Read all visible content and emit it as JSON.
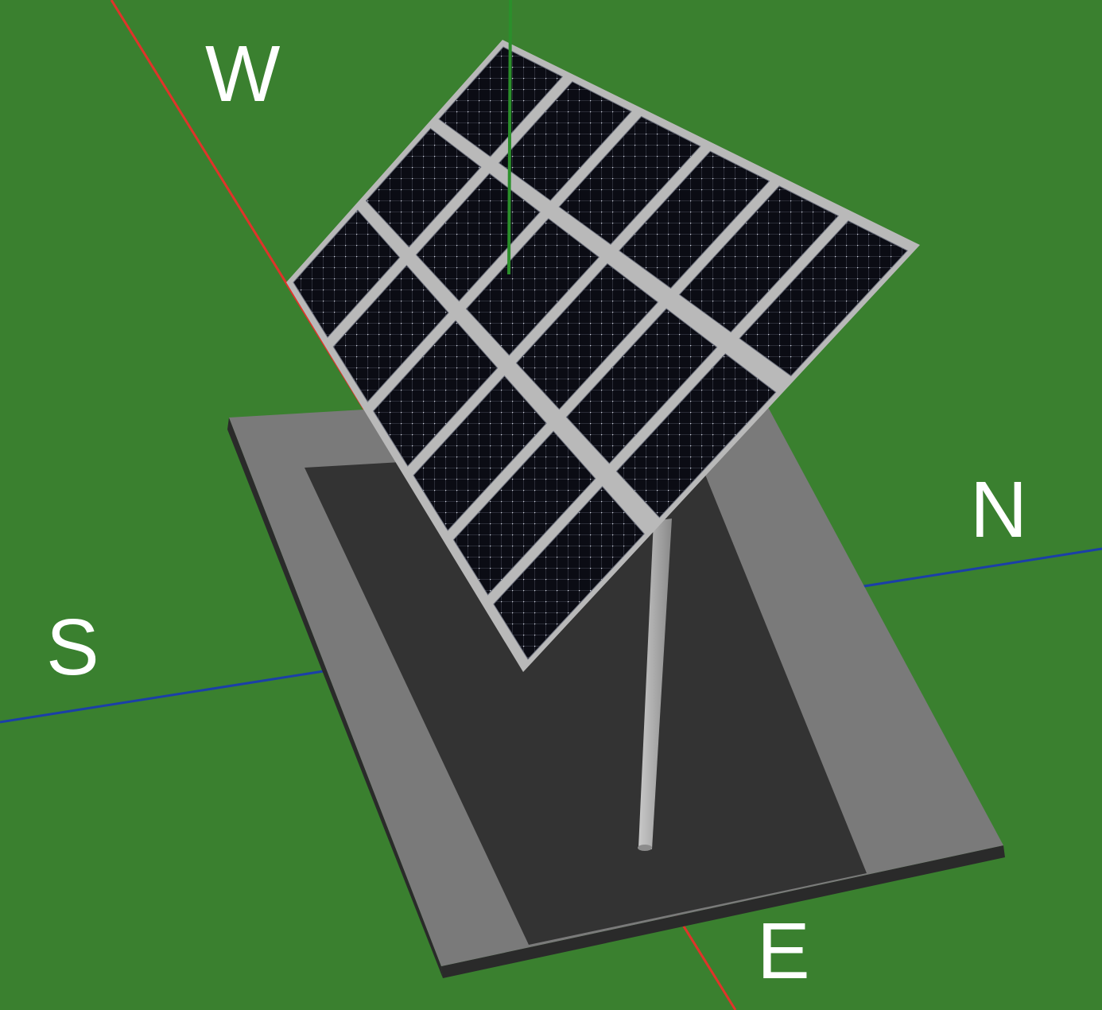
{
  "compass": {
    "west": "W",
    "north": "N",
    "south": "S",
    "east": "E"
  },
  "panel_array": {
    "rows": 3,
    "cols": 6
  },
  "colors": {
    "ground": "#3a802f",
    "pad_outer": "#7a7a7a",
    "pad_inner": "#333333",
    "pad_edge": "#2a2a2a",
    "panel_cell": "#0b0c14",
    "panel_frame": "#b9b9b9",
    "pole": "#a8a8a8",
    "axis_x": "#e0332a",
    "axis_z": "#1b3fa8",
    "axis_y": "#2b8f2b"
  }
}
